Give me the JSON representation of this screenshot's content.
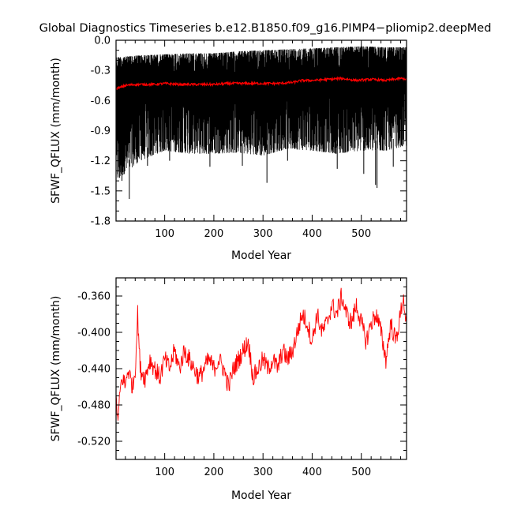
{
  "title": "Global Diagnostics Timeseries b.e12.B1850.f09_g16.PIMP4−pliomip2.deepMed",
  "colors": {
    "monthly": "#000000",
    "annual": "#ff0000",
    "frame": "#000000",
    "background": "#ffffff"
  },
  "chart_data": [
    {
      "type": "line",
      "panel": "top",
      "xlabel": "Model Year",
      "ylabel": "SFWF_QFLUX (mm/month)",
      "xlim": [
        1,
        592
      ],
      "ylim": [
        -1.8,
        0.0
      ],
      "xticks": [
        100,
        200,
        300,
        400,
        500
      ],
      "xtick_labels": [
        "100",
        "200",
        "300",
        "400",
        "500"
      ],
      "yticks": [
        0.0,
        -0.3,
        -0.6,
        -0.9,
        -1.2,
        -1.5,
        -1.8
      ],
      "ytick_labels": [
        "0.0",
        "-0.3",
        "-0.6",
        "-0.9",
        "-1.2",
        "-1.5",
        "-1.8"
      ],
      "grid": false,
      "legend": "none",
      "series": [
        {
          "color": "#000000",
          "kind": "monthly",
          "x": [
            1,
            50,
            100,
            150,
            200,
            250,
            300,
            350,
            400,
            450,
            500,
            550,
            592
          ],
          "upper": [
            -0.17,
            -0.15,
            -0.14,
            -0.13,
            -0.13,
            -0.11,
            -0.1,
            -0.09,
            -0.08,
            -0.07,
            -0.06,
            -0.07,
            -0.07
          ],
          "lower": [
            -1.4,
            -1.2,
            -1.1,
            -1.13,
            -1.13,
            -1.12,
            -1.15,
            -1.08,
            -1.1,
            -1.13,
            -1.1,
            -1.1,
            -1.05
          ],
          "spikes": [
            [
              8,
              -1.37
            ],
            [
              13,
              -1.4
            ],
            [
              28,
              -1.58
            ],
            [
              65,
              -1.25
            ],
            [
              110,
              -1.2
            ],
            [
              192,
              -1.26
            ],
            [
              258,
              -1.25
            ],
            [
              308,
              -1.42
            ],
            [
              350,
              -1.2
            ],
            [
              451,
              -1.28
            ],
            [
              505,
              -1.33
            ],
            [
              529,
              -1.44
            ],
            [
              532,
              -1.47
            ],
            [
              565,
              -1.26
            ]
          ]
        },
        {
          "color": "#ff0000",
          "kind": "annual",
          "x": [
            1,
            10,
            20,
            40,
            60,
            80,
            100,
            130,
            160,
            200,
            230,
            260,
            300,
            330,
            360,
            380,
            400,
            430,
            460,
            490,
            520,
            550,
            580,
            592
          ],
          "values": [
            -0.48,
            -0.47,
            -0.45,
            -0.44,
            -0.44,
            -0.44,
            -0.43,
            -0.44,
            -0.44,
            -0.44,
            -0.43,
            -0.43,
            -0.43,
            -0.43,
            -0.42,
            -0.4,
            -0.4,
            -0.39,
            -0.38,
            -0.4,
            -0.39,
            -0.4,
            -0.38,
            -0.39
          ]
        }
      ]
    },
    {
      "type": "line",
      "panel": "bottom",
      "xlabel": "Model Year",
      "ylabel": "SFWF_QFLUX (mm/month)",
      "xlim": [
        1,
        592
      ],
      "ylim": [
        -0.54,
        -0.34
      ],
      "xticks": [
        100,
        200,
        300,
        400,
        500
      ],
      "xtick_labels": [
        "100",
        "200",
        "300",
        "400",
        "500"
      ],
      "yticks": [
        -0.36,
        -0.4,
        -0.44,
        -0.48,
        -0.52
      ],
      "ytick_labels": [
        "-0.360",
        "-0.400",
        "-0.440",
        "-0.480",
        "-0.520"
      ],
      "grid": false,
      "legend": "none",
      "series": [
        {
          "color": "#ff0000",
          "kind": "annual",
          "x": [
            1,
            5,
            10,
            15,
            20,
            25,
            30,
            35,
            40,
            45,
            50,
            60,
            70,
            80,
            90,
            100,
            110,
            120,
            130,
            140,
            150,
            160,
            170,
            180,
            190,
            200,
            210,
            220,
            230,
            240,
            250,
            260,
            270,
            280,
            290,
            300,
            310,
            320,
            330,
            340,
            350,
            360,
            370,
            380,
            390,
            400,
            410,
            420,
            430,
            440,
            450,
            460,
            470,
            480,
            490,
            500,
            510,
            520,
            530,
            540,
            550,
            560,
            570,
            580,
            585,
            592
          ],
          "values": [
            -0.47,
            -0.5,
            -0.46,
            -0.45,
            -0.46,
            -0.44,
            -0.45,
            -0.46,
            -0.44,
            -0.38,
            -0.44,
            -0.45,
            -0.43,
            -0.44,
            -0.45,
            -0.43,
            -0.44,
            -0.42,
            -0.44,
            -0.42,
            -0.43,
            -0.44,
            -0.45,
            -0.44,
            -0.43,
            -0.44,
            -0.43,
            -0.44,
            -0.46,
            -0.44,
            -0.43,
            -0.42,
            -0.41,
            -0.45,
            -0.44,
            -0.43,
            -0.44,
            -0.43,
            -0.44,
            -0.42,
            -0.43,
            -0.42,
            -0.4,
            -0.38,
            -0.39,
            -0.41,
            -0.38,
            -0.4,
            -0.39,
            -0.37,
            -0.38,
            -0.36,
            -0.38,
            -0.39,
            -0.37,
            -0.39,
            -0.41,
            -0.39,
            -0.38,
            -0.4,
            -0.43,
            -0.39,
            -0.41,
            -0.38,
            -0.36,
            -0.39
          ]
        }
      ]
    }
  ]
}
